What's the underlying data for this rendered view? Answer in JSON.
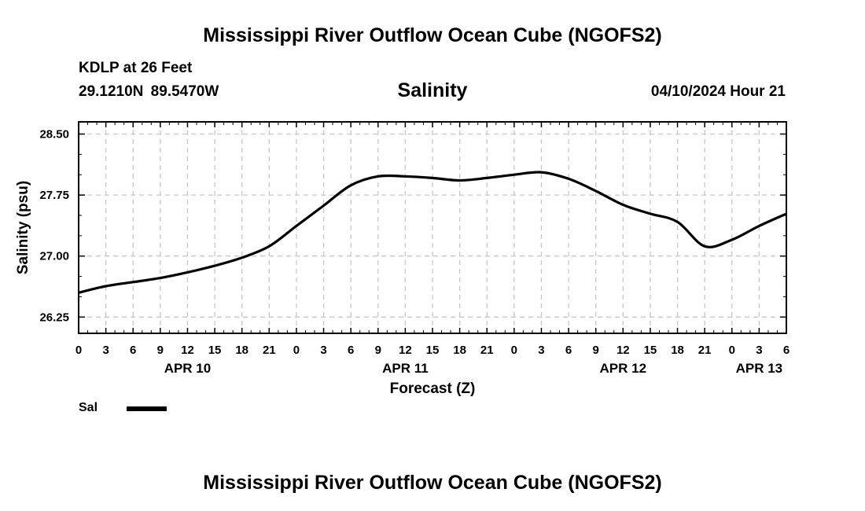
{
  "header": {
    "title": "Mississippi River Outflow Ocean Cube (NGOFS2)",
    "station": "KDLP at 26 Feet",
    "coords": "29.1210N  89.5470W",
    "variable": "Salinity",
    "datetime": "04/10/2024 Hour 21"
  },
  "footer": {
    "title": "Mississippi River Outflow Ocean Cube (NGOFS2)"
  },
  "legend": {
    "label": "Sal",
    "color": "#000000"
  },
  "chart_data": {
    "type": "line",
    "title": "Salinity",
    "xlabel": "Forecast (Z)",
    "ylabel": "Salinity (psu)",
    "xlim": [
      0,
      78
    ],
    "ylim": [
      26.05,
      28.65
    ],
    "yticks": [
      26.25,
      27.0,
      27.75,
      28.5
    ],
    "ytick_labels": [
      "26.25",
      "27.00",
      "27.75",
      "28.50"
    ],
    "xticks": [
      0,
      3,
      6,
      9,
      12,
      15,
      18,
      21,
      24,
      27,
      30,
      33,
      36,
      39,
      42,
      45,
      48,
      51,
      54,
      57,
      60,
      63,
      66,
      69,
      72,
      75,
      78
    ],
    "xtick_labels": [
      "0",
      "3",
      "6",
      "9",
      "12",
      "15",
      "18",
      "21",
      "0",
      "3",
      "6",
      "9",
      "12",
      "15",
      "18",
      "21",
      "0",
      "3",
      "6",
      "9",
      "12",
      "15",
      "18",
      "21",
      "0",
      "3",
      "6"
    ],
    "date_labels": [
      {
        "hour": 12,
        "label": "APR 10"
      },
      {
        "hour": 36,
        "label": "APR 11"
      },
      {
        "hour": 60,
        "label": "APR 12"
      },
      {
        "hour": 75,
        "label": "APR 13"
      }
    ],
    "grid": true,
    "series": [
      {
        "name": "Sal",
        "x": [
          0,
          3,
          6,
          9,
          12,
          15,
          18,
          21,
          24,
          27,
          30,
          33,
          36,
          39,
          42,
          45,
          48,
          51,
          54,
          57,
          60,
          63,
          66,
          69,
          72,
          75,
          78
        ],
        "values": [
          26.55,
          26.63,
          26.68,
          26.73,
          26.8,
          26.88,
          26.98,
          27.12,
          27.37,
          27.62,
          27.87,
          27.98,
          27.98,
          27.96,
          27.93,
          27.96,
          28.0,
          28.03,
          27.95,
          27.8,
          27.63,
          27.52,
          27.42,
          27.12,
          27.2,
          27.37,
          27.52
        ]
      }
    ]
  }
}
